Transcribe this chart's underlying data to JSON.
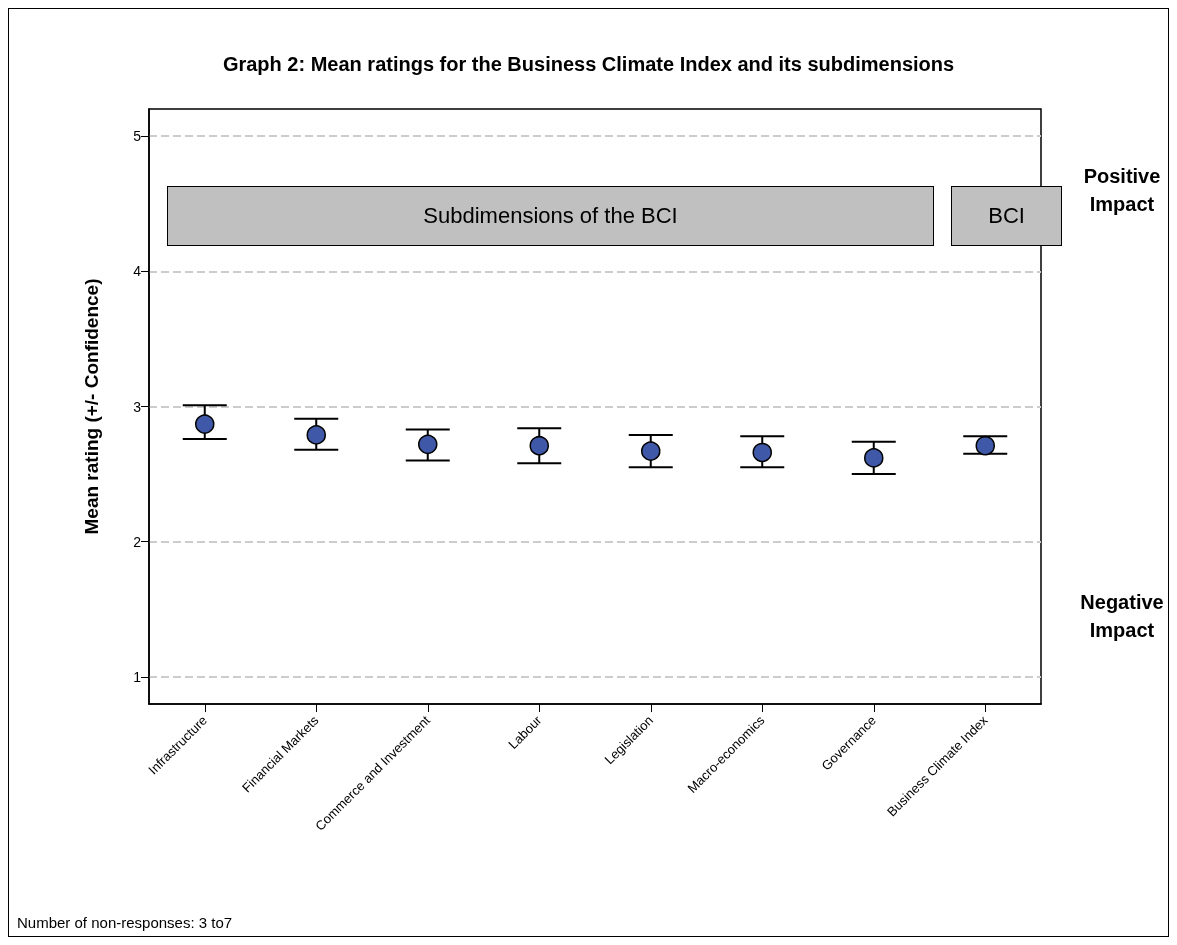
{
  "chart_data": {
    "type": "scatter",
    "title": "Graph 2: Mean ratings for the Business Climate Index and its subdimensions",
    "ylabel": "Mean rating (+/- Confidence)",
    "categories": [
      "Infrastructure",
      "Financial Markets",
      "Commerce and Investment",
      "Labour",
      "Legislation",
      "Macro-economics",
      "Governance",
      "Business Climate Index"
    ],
    "series": [
      {
        "color": "#3f58a8",
        "values": [
          2.87,
          2.79,
          2.72,
          2.71,
          2.67,
          2.66,
          2.62,
          2.71
        ],
        "errors": [
          [
            2.76,
            3.01
          ],
          [
            2.68,
            2.91
          ],
          [
            2.6,
            2.83
          ],
          [
            2.58,
            2.84
          ],
          [
            2.55,
            2.79
          ],
          [
            2.55,
            2.78
          ],
          [
            2.5,
            2.74
          ],
          [
            2.65,
            2.78
          ]
        ]
      }
    ],
    "ylim": [
      0.8,
      5.2
    ],
    "yticks": [
      1,
      2,
      3,
      4,
      5
    ],
    "grid": "y",
    "marker": "circle",
    "annotations": [
      "Subdimensions of the BCI",
      "BCI",
      "Positive Impact",
      "Negative Impact",
      "Number of non-responses: 3 to7"
    ]
  }
}
